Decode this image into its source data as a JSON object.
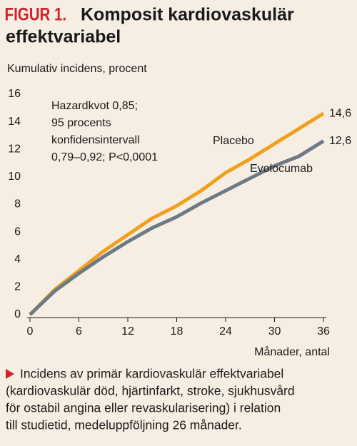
{
  "chart_data": {
    "type": "line",
    "label": "FIGUR 1.",
    "title_lines": [
      "Komposit kardiovaskulär",
      "effektvariabel"
    ],
    "ylabel": "Kumulativ incidens, procent",
    "xlabel": "Månader, antal",
    "annotation_lines": [
      "Hazardkvot 0,85;",
      "95 procents",
      "konfidensintervall",
      "0,79–0,92; P<0,0001"
    ],
    "x": [
      0,
      3,
      6,
      9,
      12,
      15,
      18,
      21,
      24,
      27,
      30,
      33,
      36
    ],
    "series": [
      {
        "name": "Placebo",
        "color": "#f0a01e",
        "values": [
          0,
          1.8,
          3.2,
          4.6,
          5.8,
          7.0,
          7.9,
          9.0,
          10.3,
          11.3,
          12.4,
          13.5,
          14.6
        ],
        "value_labels": [
          null,
          null,
          null,
          null,
          null,
          null,
          null,
          null,
          null,
          null,
          null,
          null,
          "14,6"
        ]
      },
      {
        "name": "Evolocumab",
        "color": "#6b7a85",
        "values": [
          0,
          1.7,
          3.0,
          4.2,
          5.3,
          6.3,
          7.1,
          8.1,
          9.0,
          9.9,
          10.8,
          11.5,
          12.6
        ],
        "value_labels": [
          null,
          null,
          null,
          null,
          null,
          null,
          null,
          null,
          null,
          null,
          null,
          null,
          "12,6"
        ]
      }
    ],
    "xlim": [
      0,
      36
    ],
    "xticks": [
      0,
      6,
      12,
      18,
      24,
      30,
      36
    ],
    "ylim": [
      0,
      16
    ],
    "yticks": [
      0,
      2,
      4,
      6,
      8,
      10,
      12,
      14,
      16
    ],
    "caption_lines": [
      "Incidens av primär kardiovaskulär effektvariabel",
      "(kardiovaskulär död, hjärtinfarkt, stroke, sjukhusvård",
      "för ostabil angina eller revaskularisering) i relation",
      "till studietid, medeluppföljning 26 månader."
    ]
  }
}
